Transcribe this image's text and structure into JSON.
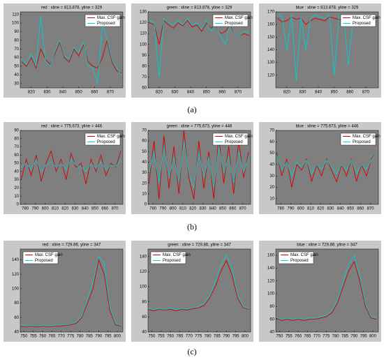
{
  "panel_labels": [
    "(a)",
    "(b)",
    "(c)"
  ],
  "chart_data": [
    {
      "type": "line",
      "title": "red : xline = 813.878, yline = 329",
      "legend": "upper right",
      "xlim": [
        813,
        878
      ],
      "xticks": [
        820,
        830,
        840,
        850,
        860,
        870
      ],
      "ylim": [
        25,
        113
      ],
      "yticks": [
        30,
        40,
        50,
        60,
        70,
        80,
        90,
        100,
        110
      ],
      "x": [
        814,
        817,
        820,
        823,
        826,
        829,
        832,
        835,
        838,
        841,
        844,
        847,
        850,
        853,
        856,
        859,
        862,
        865,
        868,
        871,
        874,
        877
      ],
      "series": [
        {
          "name": "Max. CSF gain",
          "color": "#d40000",
          "values": [
            55,
            50,
            60,
            48,
            70,
            58,
            52,
            65,
            78,
            60,
            55,
            70,
            62,
            75,
            55,
            50,
            48,
            60,
            80,
            55,
            45,
            42
          ]
        },
        {
          "name": "Proposed",
          "color": "#00d0d0",
          "values": [
            58,
            52,
            65,
            50,
            108,
            55,
            50,
            68,
            80,
            62,
            58,
            72,
            66,
            78,
            50,
            48,
            30,
            98,
            82,
            58,
            48,
            40
          ]
        }
      ]
    },
    {
      "type": "line",
      "title": "green : xline = 813.878, yline = 329",
      "legend": "upper right",
      "xlim": [
        813,
        878
      ],
      "xticks": [
        820,
        830,
        840,
        850,
        860,
        870
      ],
      "ylim": [
        60,
        130
      ],
      "yticks": [
        60,
        70,
        80,
        90,
        100,
        110,
        120,
        130
      ],
      "x": [
        814,
        817,
        820,
        823,
        826,
        829,
        832,
        835,
        838,
        841,
        844,
        847,
        850,
        853,
        856,
        859,
        862,
        865,
        868,
        871,
        874,
        877
      ],
      "series": [
        {
          "name": "Max. CSF gain",
          "color": "#d40000",
          "values": [
            120,
            118,
            100,
            122,
            118,
            115,
            120,
            117,
            122,
            116,
            118,
            112,
            120,
            115,
            118,
            110,
            112,
            118,
            110,
            108,
            110,
            108
          ]
        },
        {
          "name": "Proposed",
          "color": "#00d0d0",
          "values": [
            122,
            120,
            70,
            124,
            120,
            118,
            122,
            118,
            124,
            118,
            120,
            114,
            122,
            112,
            120,
            108,
            100,
            120,
            110,
            108,
            112,
            110
          ]
        }
      ]
    },
    {
      "type": "line",
      "title": "blue : xline = 813.878, yline = 329",
      "legend": "upper right",
      "xlim": [
        813,
        878
      ],
      "xticks": [
        820,
        830,
        840,
        850,
        860,
        870
      ],
      "ylim": [
        110,
        170
      ],
      "yticks": [
        120,
        130,
        140,
        150,
        160,
        170
      ],
      "x": [
        814,
        817,
        820,
        823,
        826,
        829,
        832,
        835,
        838,
        841,
        844,
        847,
        850,
        853,
        856,
        859,
        862,
        865,
        868,
        871,
        874,
        877
      ],
      "series": [
        {
          "name": "Max. CSF gain",
          "color": "#d40000",
          "values": [
            165,
            162,
            163,
            166,
            164,
            165,
            160,
            163,
            165,
            164,
            163,
            166,
            165,
            164,
            162,
            165,
            164,
            163,
            165,
            162,
            163,
            162
          ]
        },
        {
          "name": "Proposed",
          "color": "#00d0d0",
          "values": [
            168,
            166,
            140,
            168,
            115,
            166,
            140,
            165,
            168,
            166,
            165,
            168,
            120,
            166,
            168,
            128,
            165,
            166,
            168,
            164,
            166,
            165
          ]
        }
      ]
    },
    {
      "type": "line",
      "title": "red : xline = 775.673, yline = 446",
      "legend": "upper right",
      "xlim": [
        775,
        878
      ],
      "xticks": [
        780,
        790,
        800,
        810,
        820,
        830,
        840,
        850,
        860,
        870
      ],
      "ylim": [
        0,
        90
      ],
      "yticks": [
        0,
        10,
        20,
        30,
        40,
        50,
        60,
        70,
        80,
        90
      ],
      "x": [
        776,
        781,
        786,
        791,
        796,
        801,
        806,
        811,
        816,
        821,
        826,
        831,
        836,
        841,
        846,
        851,
        856,
        861,
        866,
        871,
        876
      ],
      "series": [
        {
          "name": "Max. CSF gain",
          "color": "#d40000",
          "values": [
            30,
            55,
            35,
            60,
            28,
            50,
            65,
            40,
            55,
            30,
            62,
            45,
            50,
            25,
            55,
            40,
            60,
            35,
            50,
            45,
            65
          ]
        },
        {
          "name": "Proposed",
          "color": "#00d0d0",
          "values": [
            45,
            50,
            42,
            55,
            40,
            48,
            52,
            45,
            50,
            42,
            55,
            48,
            45,
            40,
            50,
            44,
            52,
            42,
            48,
            46,
            55
          ]
        }
      ]
    },
    {
      "type": "line",
      "title": "green : xline = 775.673, yline = 446",
      "legend": "upper right",
      "xlim": [
        775,
        878
      ],
      "xticks": [
        780,
        790,
        800,
        810,
        820,
        830,
        840,
        850,
        860,
        870
      ],
      "ylim": [
        0,
        70
      ],
      "yticks": [
        0,
        10,
        20,
        30,
        40,
        50,
        60,
        70
      ],
      "x": [
        776,
        781,
        786,
        791,
        796,
        801,
        806,
        811,
        816,
        821,
        826,
        831,
        836,
        841,
        846,
        851,
        856,
        861,
        866,
        871,
        876
      ],
      "series": [
        {
          "name": "Max. CSF gain",
          "color": "#d40000",
          "values": [
            20,
            60,
            5,
            65,
            15,
            55,
            10,
            70,
            25,
            5,
            60,
            15,
            50,
            5,
            65,
            20,
            55,
            10,
            60,
            25,
            50
          ]
        },
        {
          "name": "Proposed",
          "color": "#00d0d0",
          "values": [
            30,
            50,
            20,
            55,
            25,
            45,
            20,
            60,
            30,
            15,
            50,
            25,
            45,
            15,
            55,
            30,
            45,
            20,
            50,
            30,
            45
          ]
        }
      ]
    },
    {
      "type": "line",
      "title": "blue : xline = 775.673, yline = 446",
      "legend": "upper right",
      "xlim": [
        775,
        878
      ],
      "xticks": [
        780,
        790,
        800,
        810,
        820,
        830,
        840,
        850,
        860,
        870
      ],
      "ylim": [
        5,
        70
      ],
      "yticks": [
        10,
        20,
        30,
        40,
        50,
        60,
        70
      ],
      "x": [
        776,
        781,
        786,
        791,
        796,
        801,
        806,
        811,
        816,
        821,
        826,
        831,
        836,
        841,
        846,
        851,
        856,
        861,
        866,
        871,
        876
      ],
      "series": [
        {
          "name": "Max. CSF gain",
          "color": "#d40000",
          "values": [
            50,
            30,
            45,
            20,
            40,
            35,
            45,
            25,
            40,
            30,
            45,
            35,
            25,
            40,
            30,
            45,
            25,
            40,
            30,
            45,
            50
          ]
        },
        {
          "name": "Proposed",
          "color": "#00d0d0",
          "values": [
            48,
            35,
            42,
            30,
            42,
            38,
            44,
            32,
            40,
            36,
            44,
            38,
            32,
            40,
            35,
            44,
            32,
            40,
            36,
            44,
            50
          ]
        }
      ]
    },
    {
      "type": "line",
      "title": "red : xline = 729.86, yline = 347",
      "legend": "upper left",
      "xlim": [
        748,
        803
      ],
      "xticks": [
        750,
        755,
        760,
        765,
        770,
        775,
        780,
        785,
        790,
        795,
        800
      ],
      "ylim": [
        40,
        155
      ],
      "yticks": [
        40,
        60,
        80,
        100,
        120,
        140
      ],
      "x": [
        748,
        751,
        754,
        757,
        760,
        763,
        766,
        769,
        772,
        775,
        778,
        781,
        784,
        787,
        790,
        793,
        796,
        799,
        802
      ],
      "series": [
        {
          "name": "Max. CSF gain",
          "color": "#d40000",
          "values": [
            48,
            47,
            48,
            47,
            48,
            47,
            48,
            48,
            49,
            50,
            52,
            60,
            80,
            100,
            140,
            120,
            70,
            50,
            48
          ]
        },
        {
          "name": "Proposed",
          "color": "#00d0d0",
          "values": [
            50,
            48,
            49,
            48,
            49,
            48,
            49,
            50,
            50,
            51,
            54,
            62,
            85,
            110,
            145,
            135,
            75,
            52,
            49
          ]
        }
      ]
    },
    {
      "type": "line",
      "title": "green : xline = 729.86, yline = 347",
      "legend": "upper left",
      "xlim": [
        748,
        803
      ],
      "xticks": [
        750,
        755,
        760,
        765,
        770,
        775,
        780,
        785,
        790,
        795,
        800
      ],
      "ylim": [
        40,
        150
      ],
      "yticks": [
        40,
        60,
        80,
        100,
        120,
        140
      ],
      "x": [
        748,
        751,
        754,
        757,
        760,
        763,
        766,
        769,
        772,
        775,
        778,
        781,
        784,
        787,
        790,
        793,
        796,
        799,
        802
      ],
      "series": [
        {
          "name": "Max. CSF gain",
          "color": "#d40000",
          "values": [
            70,
            68,
            70,
            69,
            70,
            68,
            70,
            69,
            71,
            72,
            75,
            85,
            100,
            120,
            135,
            115,
            85,
            72,
            70
          ]
        },
        {
          "name": "Proposed",
          "color": "#00d0d0",
          "values": [
            72,
            70,
            71,
            70,
            72,
            70,
            71,
            71,
            72,
            74,
            78,
            88,
            106,
            128,
            142,
            125,
            90,
            74,
            71
          ]
        }
      ]
    },
    {
      "type": "line",
      "title": "blue : xline = 729.86, yline = 347",
      "legend": "upper left",
      "xlim": [
        748,
        803
      ],
      "xticks": [
        750,
        755,
        760,
        765,
        770,
        775,
        780,
        785,
        790,
        795,
        800
      ],
      "ylim": [
        40,
        170
      ],
      "yticks": [
        40,
        60,
        80,
        100,
        120,
        140,
        160
      ],
      "x": [
        748,
        751,
        754,
        757,
        760,
        763,
        766,
        769,
        772,
        775,
        778,
        781,
        784,
        787,
        790,
        793,
        796,
        799,
        802
      ],
      "series": [
        {
          "name": "Max. CSF gain",
          "color": "#d40000",
          "values": [
            62,
            58,
            60,
            58,
            60,
            58,
            60,
            60,
            62,
            64,
            70,
            85,
            110,
            135,
            150,
            120,
            80,
            62,
            60
          ]
        },
        {
          "name": "Proposed",
          "color": "#00d0d0",
          "values": [
            64,
            60,
            62,
            60,
            62,
            60,
            62,
            62,
            64,
            66,
            74,
            90,
            118,
            145,
            160,
            130,
            85,
            64,
            62
          ]
        }
      ]
    }
  ]
}
